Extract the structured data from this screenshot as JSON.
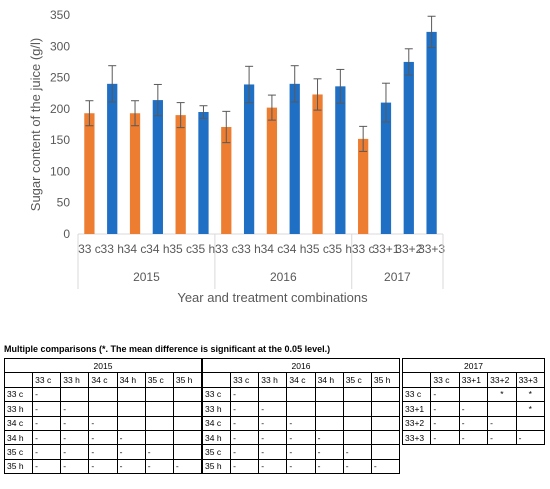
{
  "chart_data": {
    "type": "bar",
    "ylabel": "Sugar content of the juice (g/l)",
    "xlabel": "Year and treatment combinations",
    "ylim": [
      0,
      350
    ],
    "yticks": [
      0,
      50,
      100,
      150,
      200,
      250,
      300,
      350
    ],
    "grid": false,
    "legend": "none",
    "colors": {
      "c": "#ED7D31",
      "h": "#1F6FC5",
      "error_bar": "#595959"
    },
    "groups": [
      {
        "year": "2015",
        "categories": [
          "33 c",
          "33 h",
          "34 c",
          "34 h",
          "35 c",
          "35 h"
        ],
        "values": [
          193,
          240,
          193,
          214,
          190,
          195
        ],
        "errors": [
          20,
          29,
          20,
          25,
          20,
          10
        ],
        "color_keys": [
          "c",
          "h",
          "c",
          "h",
          "c",
          "h"
        ]
      },
      {
        "year": "2016",
        "categories": [
          "33 c",
          "33 h",
          "34 c",
          "34 h",
          "35 c",
          "35 h"
        ],
        "values": [
          171,
          239,
          202,
          240,
          223,
          236
        ],
        "errors": [
          25,
          29,
          20,
          29,
          25,
          27
        ],
        "color_keys": [
          "c",
          "h",
          "c",
          "h",
          "c",
          "h"
        ]
      },
      {
        "year": "2017",
        "categories": [
          "33 c",
          "33+1",
          "33+2",
          "33+3"
        ],
        "values": [
          152,
          210,
          275,
          323
        ],
        "errors": [
          20,
          31,
          21,
          25
        ],
        "color_keys": [
          "c",
          "h",
          "h",
          "h"
        ]
      }
    ]
  },
  "comparisons": {
    "title": "Multiple comparisons (*. The mean difference is significant at the 0.05 level.)",
    "tables": [
      {
        "year": "2015",
        "labels": [
          "33 c",
          "33 h",
          "34 c",
          "34 h",
          "35 c",
          "35 h"
        ],
        "rows": [
          [
            "-",
            "",
            "",
            "",
            "",
            ""
          ],
          [
            "-",
            "-",
            "",
            "",
            "",
            ""
          ],
          [
            "-",
            "-",
            "-",
            "",
            "",
            ""
          ],
          [
            "-",
            "-",
            "-",
            "-",
            "",
            ""
          ],
          [
            "-",
            "-",
            "-",
            "-",
            "-",
            ""
          ],
          [
            "-",
            "-",
            "-",
            "-",
            "-",
            "-"
          ]
        ]
      },
      {
        "year": "2016",
        "labels": [
          "33 c",
          "33 h",
          "34 c",
          "34 h",
          "35 c",
          "35 h"
        ],
        "rows": [
          [
            "-",
            "",
            "",
            "",
            "",
            ""
          ],
          [
            "-",
            "-",
            "",
            "",
            "",
            ""
          ],
          [
            "-",
            "-",
            "-",
            "",
            "",
            ""
          ],
          [
            "-",
            "-",
            "-",
            "-",
            "",
            ""
          ],
          [
            "-",
            "-",
            "-",
            "-",
            "-",
            ""
          ],
          [
            "-",
            "-",
            "-",
            "-",
            "-",
            "-"
          ]
        ]
      },
      {
        "year": "2017",
        "labels": [
          "33 c",
          "33+1",
          "33+2",
          "33+3"
        ],
        "rows": [
          [
            "-",
            "",
            "*",
            "*"
          ],
          [
            "-",
            "-",
            "",
            "*"
          ],
          [
            "-",
            "-",
            "-",
            ""
          ],
          [
            "-",
            "-",
            "-",
            "-"
          ]
        ]
      }
    ]
  }
}
